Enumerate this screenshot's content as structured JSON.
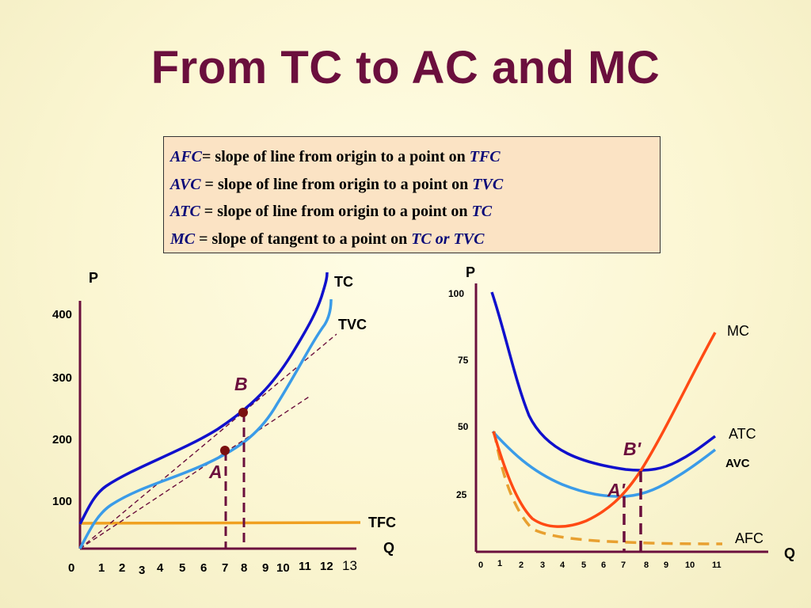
{
  "title": "From TC to AC and MC",
  "definitions": [
    {
      "term": "AFC",
      "sep": "= slope of line from origin to a point on ",
      "ref": "TFC"
    },
    {
      "term": "AVC",
      "sep": " = slope of line from origin to a point on ",
      "ref": "TVC"
    },
    {
      "term": "ATC",
      "sep": " = slope of line from origin to a point on ",
      "ref": "TC"
    },
    {
      "term": "MC",
      "sep": " = slope of tangent to a point on ",
      "ref": "TC or TVC"
    }
  ],
  "left_graph": {
    "y_axis_label": "P",
    "x_axis_label": "Q",
    "y_ticks": [
      "400",
      "300",
      "200",
      "100"
    ],
    "x_ticks": [
      "0",
      "1",
      "2",
      "3",
      "4",
      "5",
      "6",
      "7",
      "8",
      "9",
      "10",
      "11",
      "12",
      "13"
    ],
    "curve_labels": {
      "tc": "TC",
      "tvc": "TVC",
      "tfc": "TFC"
    },
    "point_labels": {
      "a": "A",
      "b": "B"
    }
  },
  "right_graph": {
    "y_axis_label": "P",
    "x_axis_label": "Q",
    "y_ticks": [
      "100",
      "75",
      "50",
      "25"
    ],
    "x_ticks": [
      "0",
      "1",
      "2",
      "3",
      "4",
      "5",
      "6",
      "7",
      "8",
      "9",
      "10",
      "11"
    ],
    "curve_labels": {
      "mc": "MC",
      "atc": "ATC",
      "avc": "AVC",
      "afc": "AFC"
    },
    "point_labels": {
      "a": "A'",
      "b": "B'"
    }
  },
  "colors": {
    "title": "#6b0f3d",
    "axis": "#6b0f3d",
    "tc": "#1010cc",
    "tvc": "#3a9be8",
    "tfc": "#f0a020",
    "mc": "#ff4a14",
    "afc": "#e8a030",
    "guide": "#6b0f3d",
    "point": "#7a1010"
  }
}
